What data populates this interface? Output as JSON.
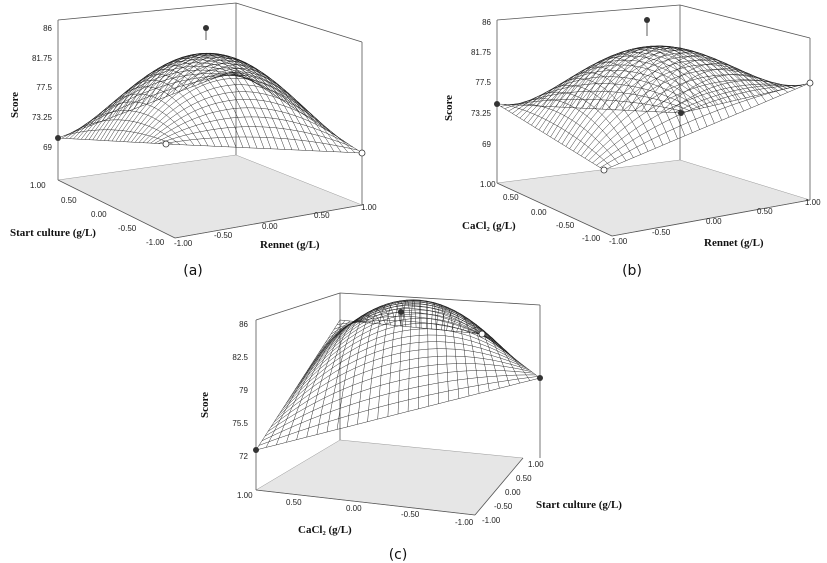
{
  "chart_data": [
    {
      "panel": "(a)",
      "type": "surface",
      "zlabel": "Score",
      "xlabel": "Rennet (g/L)",
      "ylabel": "Start culture (g/L)",
      "z_ticks": [
        "86",
        "81.75",
        "77.5",
        "73.25",
        "69"
      ],
      "x_ticks": [
        "-1.00",
        "-0.50",
        "0.00",
        "0.50",
        "1.00"
      ],
      "y_ticks": [
        "1.00",
        "0.50",
        "0.00",
        "-0.50",
        "-1.00"
      ],
      "zlim": [
        69,
        86
      ],
      "surface_points": [
        {
          "x": -1,
          "y": 1,
          "z": 71.5
        },
        {
          "x": 1,
          "y": -1,
          "z": 69.5
        },
        {
          "x": -1,
          "y": -1,
          "z": 69.5
        },
        {
          "x": 0,
          "y": 0,
          "z": 85
        }
      ]
    },
    {
      "panel": "(b)",
      "type": "surface",
      "zlabel": "Score",
      "xlabel": "Rennet (g/L)",
      "ylabel": "CaCl₂ (g/L)",
      "z_ticks": [
        "86",
        "81.75",
        "77.5",
        "73.25",
        "69"
      ],
      "x_ticks": [
        "-1.00",
        "-0.50",
        "0.00",
        "0.50",
        "1.00"
      ],
      "y_ticks": [
        "1.00",
        "0.50",
        "0.00",
        "-0.50",
        "-1.00"
      ],
      "zlim": [
        69,
        86
      ],
      "surface_points": [
        {
          "x": -1,
          "y": 1,
          "z": 75
        },
        {
          "x": 1,
          "y": -1,
          "z": 79
        },
        {
          "x": -1,
          "y": -1,
          "z": 70
        },
        {
          "x": 1,
          "y": 1,
          "z": 75
        },
        {
          "x": 0,
          "y": 0,
          "z": 84
        }
      ]
    },
    {
      "panel": "(c)",
      "type": "surface",
      "zlabel": "Score",
      "xlabel": "CaCl₂ (g/L)",
      "ylabel": "Start culture (g/L)",
      "z_ticks": [
        "86",
        "82.5",
        "79",
        "75.5",
        "72"
      ],
      "x_ticks": [
        "1.00",
        "0.50",
        "0.00",
        "-0.50",
        "-1.00"
      ],
      "y_ticks": [
        "1.00",
        "0.50",
        "0.00",
        "-0.50",
        "-1.00"
      ],
      "zlim": [
        72,
        86
      ],
      "surface_points": [
        {
          "x": 1,
          "y": -1,
          "z": 72.5
        },
        {
          "x": -1,
          "y": 1,
          "z": 84
        },
        {
          "x": -1,
          "y": -1,
          "z": 80
        },
        {
          "x": 0,
          "y": 0,
          "z": 85.5
        }
      ]
    }
  ]
}
